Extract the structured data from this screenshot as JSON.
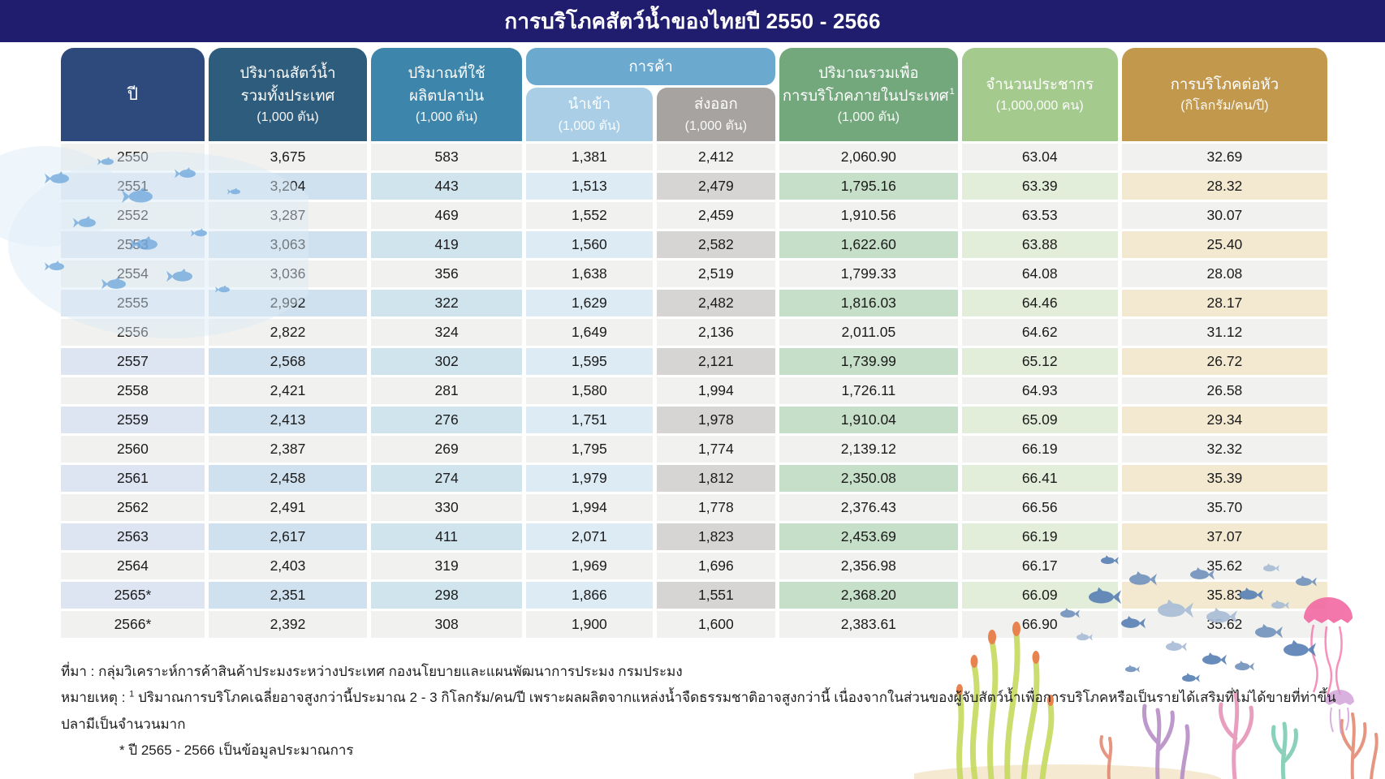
{
  "title": "การบริโภคสัตว์น้ำของไทยปี 2550 - 2566",
  "chart_data": {
    "type": "table",
    "title": "การบริโภคสัตว์น้ำของไทยปี 2550 - 2566",
    "trade_label": "การค้า",
    "columns": [
      {
        "key": "year",
        "lines": [
          "ปี"
        ],
        "unit": ""
      },
      {
        "key": "total",
        "lines": [
          "ปริมาณสัตว์น้ำ",
          "รวมทั้งประเทศ"
        ],
        "unit": "(1,000 ตัน)"
      },
      {
        "key": "fishmeal",
        "lines": [
          "ปริมาณที่ใช้",
          "ผลิตปลาป่น"
        ],
        "unit": "(1,000 ตัน)"
      },
      {
        "key": "import",
        "group": "การค้า",
        "lines": [
          "นำเข้า"
        ],
        "unit": "(1,000 ตัน)"
      },
      {
        "key": "export",
        "group": "การค้า",
        "lines": [
          "ส่งออก"
        ],
        "unit": "(1,000 ตัน)"
      },
      {
        "key": "consumption",
        "lines": [
          "ปริมาณรวมเพื่อ",
          "การบริโภคภายในประเทศ"
        ],
        "sup": "1",
        "unit": "(1,000 ตัน)"
      },
      {
        "key": "population",
        "lines": [
          "จำนวนประชากร"
        ],
        "unit": "(1,000,000 คน)"
      },
      {
        "key": "percapita",
        "lines": [
          "การบริโภคต่อหัว"
        ],
        "unit": "(กิโลกรัม/คน/ปี)"
      }
    ],
    "rows": [
      {
        "year": "2550",
        "total": "3,675",
        "fishmeal": "583",
        "import": "1,381",
        "export": "2,412",
        "consumption": "2,060.90",
        "population": "63.04",
        "percapita": "32.69"
      },
      {
        "year": "2551",
        "total": "3,204",
        "fishmeal": "443",
        "import": "1,513",
        "export": "2,479",
        "consumption": "1,795.16",
        "population": "63.39",
        "percapita": "28.32"
      },
      {
        "year": "2552",
        "total": "3,287",
        "fishmeal": "469",
        "import": "1,552",
        "export": "2,459",
        "consumption": "1,910.56",
        "population": "63.53",
        "percapita": "30.07"
      },
      {
        "year": "2553",
        "total": "3,063",
        "fishmeal": "419",
        "import": "1,560",
        "export": "2,582",
        "consumption": "1,622.60",
        "population": "63.88",
        "percapita": "25.40"
      },
      {
        "year": "2554",
        "total": "3,036",
        "fishmeal": "356",
        "import": "1,638",
        "export": "2,519",
        "consumption": "1,799.33",
        "population": "64.08",
        "percapita": "28.08"
      },
      {
        "year": "2555",
        "total": "2,992",
        "fishmeal": "322",
        "import": "1,629",
        "export": "2,482",
        "consumption": "1,816.03",
        "population": "64.46",
        "percapita": "28.17"
      },
      {
        "year": "2556",
        "total": "2,822",
        "fishmeal": "324",
        "import": "1,649",
        "export": "2,136",
        "consumption": "2,011.05",
        "population": "64.62",
        "percapita": "31.12"
      },
      {
        "year": "2557",
        "total": "2,568",
        "fishmeal": "302",
        "import": "1,595",
        "export": "2,121",
        "consumption": "1,739.99",
        "population": "65.12",
        "percapita": "26.72"
      },
      {
        "year": "2558",
        "total": "2,421",
        "fishmeal": "281",
        "import": "1,580",
        "export": "1,994",
        "consumption": "1,726.11",
        "population": "64.93",
        "percapita": "26.58"
      },
      {
        "year": "2559",
        "total": "2,413",
        "fishmeal": "276",
        "import": "1,751",
        "export": "1,978",
        "consumption": "1,910.04",
        "population": "65.09",
        "percapita": "29.34"
      },
      {
        "year": "2560",
        "total": "2,387",
        "fishmeal": "269",
        "import": "1,795",
        "export": "1,774",
        "consumption": "2,139.12",
        "population": "66.19",
        "percapita": "32.32"
      },
      {
        "year": "2561",
        "total": "2,458",
        "fishmeal": "274",
        "import": "1,979",
        "export": "1,812",
        "consumption": "2,350.08",
        "population": "66.41",
        "percapita": "35.39"
      },
      {
        "year": "2562",
        "total": "2,491",
        "fishmeal": "330",
        "import": "1,994",
        "export": "1,778",
        "consumption": "2,376.43",
        "population": "66.56",
        "percapita": "35.70"
      },
      {
        "year": "2563",
        "total": "2,617",
        "fishmeal": "411",
        "import": "2,071",
        "export": "1,823",
        "consumption": "2,453.69",
        "population": "66.19",
        "percapita": "37.07"
      },
      {
        "year": "2564",
        "total": "2,403",
        "fishmeal": "319",
        "import": "1,969",
        "export": "1,696",
        "consumption": "2,356.98",
        "population": "66.17",
        "percapita": "35.62"
      },
      {
        "year": "2565*",
        "total": "2,351",
        "fishmeal": "298",
        "import": "1,866",
        "export": "1,551",
        "consumption": "2,368.20",
        "population": "66.09",
        "percapita": "35.83"
      },
      {
        "year": "2566*",
        "total": "2,392",
        "fishmeal": "308",
        "import": "1,900",
        "export": "1,600",
        "consumption": "2,383.61",
        "population": "66.90",
        "percapita": "35.62"
      }
    ]
  },
  "footnotes": {
    "source": "ที่มา : กลุ่มวิเคราะห์การค้าสินค้าประมงระหว่างประเทศ กองนโยบายและแผนพัฒนาการประมง กรมประมง",
    "note_label": "หมายเหตุ : ",
    "note_sup": "1",
    "note_text": " ปริมาณการบริโภคเฉลี่ยอาจสูงกว่านี้ประมาณ 2 - 3 กิโลกรัม/คน/ปี เพราะผลผลิตจากแหล่งน้ำจืดธรรมชาติอาจสูงกว่านี้ เนื่องจากในส่วนของผู้จับสัตว์น้ำเพื่อการบริโภคหรือเป็นรายได้เสริมที่ไม่ได้ขายที่ท่าขึ้นปลามีเป็นจำนวนมาก",
    "estimate": "* ปี 2565 - 2566 เป็นข้อมูลประมาณการ"
  },
  "colors": {
    "title_bar": "#211d6e",
    "h_year": "#2e4a7d",
    "h_total": "#2e5c7c",
    "h_fishmeal": "#3d85aa",
    "h_trade": "#6ca9cf",
    "h_import": "#a9cee6",
    "h_export": "#a6a3a0",
    "h_consumption": "#73a87c",
    "h_population": "#a5ca8e",
    "h_percapita": "#c2984d",
    "row_plain": "#f1f1ef",
    "t_year": "#dde5f2",
    "t_total": "#cfe0ee",
    "t_fishmeal": "#d0e4ee",
    "t_import": "#ddebf5",
    "t_export": "#d7d5d3",
    "t_consumption": "#c6dfc8",
    "t_population": "#e2eeda",
    "t_percapita": "#f2e9d0",
    "text_dark": "#1b1b1b"
  }
}
